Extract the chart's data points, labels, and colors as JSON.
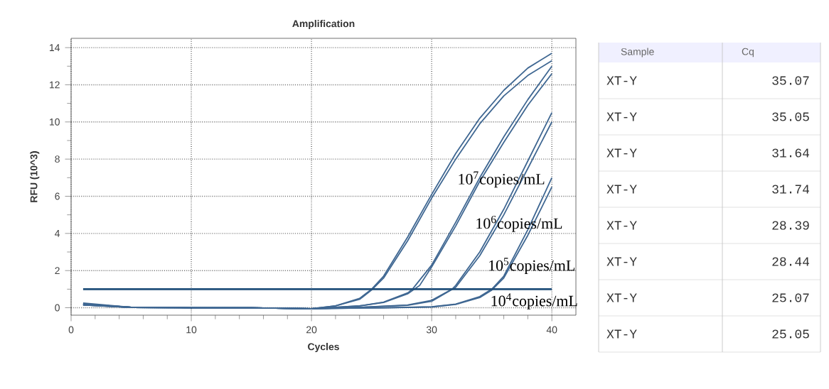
{
  "chart_data": {
    "type": "line",
    "title": "Amplification",
    "xlabel": "Cycles",
    "ylabel": "RFU (10^3)",
    "xlim": [
      0,
      42
    ],
    "ylim": [
      -0.4,
      14.5
    ],
    "xticks": [
      0,
      10,
      20,
      30,
      40
    ],
    "yticks": [
      0,
      2,
      4,
      6,
      8,
      10,
      12,
      14
    ],
    "grid": true,
    "ref_lines": [
      {
        "axis": "y",
        "value": 1,
        "color": "#1f4e79"
      }
    ],
    "series": [
      {
        "color": "#3f6792",
        "x": [
          1,
          5,
          10,
          15,
          20,
          22,
          24,
          25,
          26,
          28,
          30,
          32,
          34,
          36,
          38,
          40
        ],
        "values": [
          0.25,
          0.02,
          0,
          0,
          -0.05,
          0.1,
          0.5,
          1.0,
          1.7,
          3.8,
          6.1,
          8.3,
          10.2,
          11.7,
          12.9,
          13.7
        ]
      },
      {
        "color": "#3f6792",
        "x": [
          1,
          5,
          10,
          15,
          20,
          22,
          24,
          25,
          26,
          28,
          30,
          32,
          34,
          36,
          38,
          40
        ],
        "values": [
          0.2,
          0.02,
          0,
          0,
          -0.05,
          0.1,
          0.45,
          0.95,
          1.6,
          3.6,
          5.9,
          8.0,
          9.9,
          11.4,
          12.5,
          13.3
        ]
      },
      {
        "color": "#3f6792",
        "x": [
          1,
          5,
          10,
          15,
          20,
          24,
          26,
          28,
          28.4,
          30,
          32,
          34,
          36,
          38,
          40
        ],
        "values": [
          0.2,
          0.02,
          0,
          0,
          -0.05,
          0.1,
          0.3,
          0.8,
          1.0,
          2.3,
          4.6,
          7.0,
          9.2,
          11.2,
          13.0
        ]
      },
      {
        "color": "#3f6792",
        "x": [
          1,
          5,
          10,
          15,
          20,
          24,
          26,
          28,
          29,
          30,
          32,
          34,
          36,
          38,
          40
        ],
        "values": [
          0.15,
          0.02,
          0,
          0,
          -0.05,
          0.1,
          0.28,
          0.75,
          1.2,
          2.2,
          4.4,
          6.8,
          8.9,
          10.9,
          12.6
        ]
      },
      {
        "color": "#3f6792",
        "x": [
          1,
          5,
          10,
          15,
          20,
          24,
          28,
          30,
          31.7,
          32,
          34,
          36,
          38,
          40
        ],
        "values": [
          0.2,
          0.02,
          0,
          0,
          -0.05,
          0.02,
          0.15,
          0.4,
          1.0,
          1.2,
          3.0,
          5.3,
          7.9,
          10.5
        ]
      },
      {
        "color": "#3f6792",
        "x": [
          1,
          5,
          10,
          15,
          20,
          24,
          28,
          30,
          32,
          34,
          36,
          38,
          40
        ],
        "values": [
          0.15,
          0.02,
          0,
          0,
          -0.05,
          0.02,
          0.13,
          0.35,
          1.1,
          2.8,
          5.0,
          7.5,
          10.0
        ]
      },
      {
        "color": "#3f6792",
        "x": [
          1,
          5,
          10,
          15,
          20,
          26,
          30,
          32,
          34,
          35,
          36,
          38,
          40
        ],
        "values": [
          0.2,
          0.02,
          0,
          0,
          -0.05,
          0,
          0.05,
          0.2,
          0.6,
          1.0,
          1.7,
          4.2,
          7.0
        ]
      },
      {
        "color": "#3f6792",
        "x": [
          1,
          5,
          10,
          15,
          20,
          26,
          30,
          32,
          34,
          35,
          36,
          38,
          40
        ],
        "values": [
          0.15,
          0.02,
          0,
          0,
          -0.05,
          0,
          0.04,
          0.18,
          0.55,
          0.95,
          1.6,
          3.9,
          6.5
        ]
      }
    ],
    "annotations": [
      "10$^{7}$copies/mL",
      "10$^{6}$copies/mL",
      "10$^{5}$copies/mL",
      "10$^{4}$copies/mL",
      "Sample",
      "Cq",
      "XT-Y",
      "35.07",
      "XT-Y",
      "35.05",
      "XT-Y",
      "31.64",
      "XT-Y",
      "31.74",
      "XT-Y",
      "28.39",
      "XT-Y",
      "28.44",
      "XT-Y",
      "25.07",
      "XT-Y",
      "25.05"
    ]
  }
}
